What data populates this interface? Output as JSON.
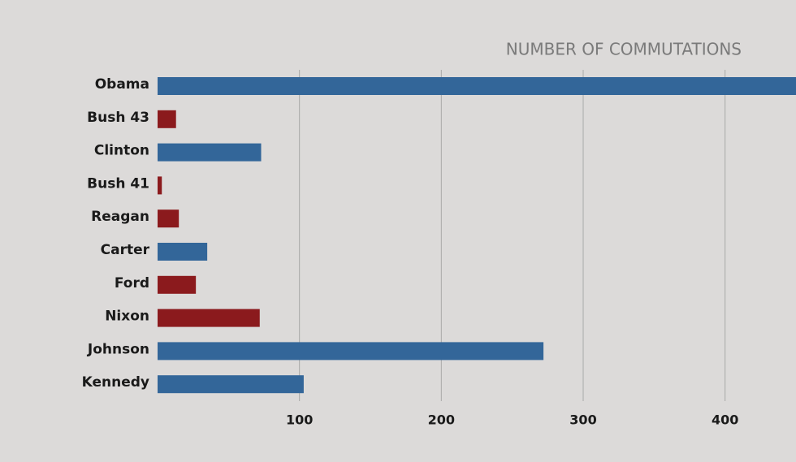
{
  "chart_data": {
    "type": "barh",
    "title": "NUMBER OF COMMUTATIONS",
    "categories": [
      "Obama",
      "Bush 43",
      "Clinton",
      "Bush 41",
      "Reagan",
      "Carter",
      "Ford",
      "Nixon",
      "Johnson",
      "Kennedy"
    ],
    "values": [
      450,
      13,
      73,
      3,
      15,
      35,
      27,
      72,
      272,
      103
    ],
    "colors": [
      "#336699",
      "#8b1a1d",
      "#336699",
      "#8b1a1d",
      "#8b1a1d",
      "#336699",
      "#8b1a1d",
      "#8b1a1d",
      "#336699",
      "#336699"
    ],
    "xlim": [
      0,
      450
    ],
    "xticks": [
      100,
      200,
      300,
      400
    ],
    "grid": true
  }
}
